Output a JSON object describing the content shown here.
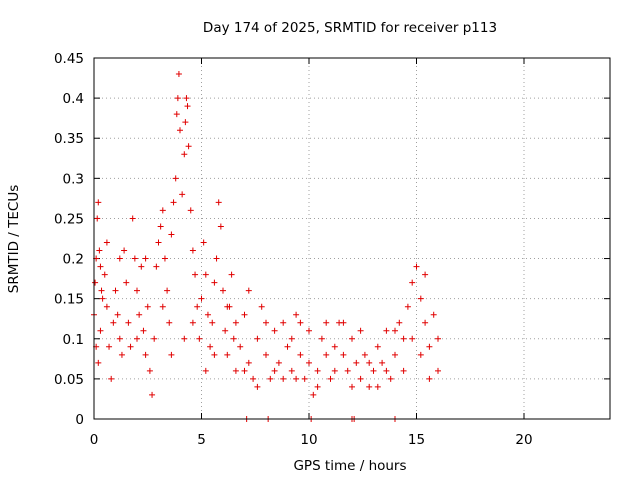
{
  "chart_data": {
    "type": "scatter",
    "title": "Day 174 of 2025, SRMTID for receiver p113",
    "xlabel": "GPS time / hours",
    "ylabel": "SRMTID / TECUs",
    "xlim": [
      0,
      24
    ],
    "ylim": [
      0,
      0.45
    ],
    "xticks": [
      0,
      5,
      10,
      15,
      20
    ],
    "yticks": [
      0,
      0.05,
      0.1,
      0.15,
      0.2,
      0.25,
      0.3,
      0.35,
      0.4,
      0.45
    ],
    "xtick_labels": [
      "0",
      "5",
      "10",
      "15",
      "20"
    ],
    "ytick_labels": [
      "0",
      "0.05",
      "0.1",
      "0.15",
      "0.2",
      "0.25",
      "0.3",
      "0.35",
      "0.4",
      "0.45"
    ],
    "grid": true,
    "marker": "plus",
    "color": "#e00000",
    "series": [
      {
        "name": "SRMTID",
        "points": [
          [
            0.0,
            0.13
          ],
          [
            0.05,
            0.17
          ],
          [
            0.1,
            0.2
          ],
          [
            0.15,
            0.25
          ],
          [
            0.2,
            0.27
          ],
          [
            0.25,
            0.21
          ],
          [
            0.3,
            0.19
          ],
          [
            0.35,
            0.16
          ],
          [
            0.1,
            0.09
          ],
          [
            0.2,
            0.07
          ],
          [
            0.3,
            0.11
          ],
          [
            0.4,
            0.15
          ],
          [
            0.5,
            0.18
          ],
          [
            0.6,
            0.14
          ],
          [
            0.7,
            0.09
          ],
          [
            0.8,
            0.05
          ],
          [
            0.9,
            0.12
          ],
          [
            1.0,
            0.16
          ],
          [
            1.1,
            0.13
          ],
          [
            1.2,
            0.1
          ],
          [
            1.3,
            0.08
          ],
          [
            1.4,
            0.21
          ],
          [
            1.5,
            0.17
          ],
          [
            1.6,
            0.12
          ],
          [
            1.7,
            0.09
          ],
          [
            1.8,
            0.25
          ],
          [
            1.9,
            0.2
          ],
          [
            2.0,
            0.16
          ],
          [
            2.1,
            0.13
          ],
          [
            2.2,
            0.19
          ],
          [
            2.3,
            0.11
          ],
          [
            2.4,
            0.08
          ],
          [
            2.5,
            0.14
          ],
          [
            2.6,
            0.06
          ],
          [
            2.7,
            0.03
          ],
          [
            2.8,
            0.1
          ],
          [
            2.9,
            0.19
          ],
          [
            3.0,
            0.22
          ],
          [
            3.1,
            0.24
          ],
          [
            3.2,
            0.26
          ],
          [
            3.3,
            0.2
          ],
          [
            3.4,
            0.16
          ],
          [
            3.5,
            0.12
          ],
          [
            3.6,
            0.23
          ],
          [
            3.7,
            0.27
          ],
          [
            3.8,
            0.3
          ],
          [
            3.85,
            0.38
          ],
          [
            3.9,
            0.4
          ],
          [
            3.95,
            0.43
          ],
          [
            4.0,
            0.36
          ],
          [
            4.1,
            0.28
          ],
          [
            4.2,
            0.33
          ],
          [
            4.25,
            0.37
          ],
          [
            4.3,
            0.4
          ],
          [
            4.35,
            0.39
          ],
          [
            4.4,
            0.34
          ],
          [
            4.5,
            0.26
          ],
          [
            4.6,
            0.21
          ],
          [
            4.7,
            0.18
          ],
          [
            4.8,
            0.14
          ],
          [
            4.9,
            0.1
          ],
          [
            5.0,
            0.15
          ],
          [
            5.1,
            0.22
          ],
          [
            5.2,
            0.18
          ],
          [
            5.3,
            0.13
          ],
          [
            5.4,
            0.09
          ],
          [
            5.5,
            0.12
          ],
          [
            5.6,
            0.17
          ],
          [
            5.7,
            0.2
          ],
          [
            5.8,
            0.27
          ],
          [
            5.9,
            0.24
          ],
          [
            6.0,
            0.16
          ],
          [
            6.1,
            0.11
          ],
          [
            6.2,
            0.08
          ],
          [
            6.3,
            0.14
          ],
          [
            6.4,
            0.18
          ],
          [
            6.5,
            0.1
          ],
          [
            6.6,
            0.06
          ],
          [
            6.8,
            0.09
          ],
          [
            7.0,
            0.13
          ],
          [
            7.2,
            0.07
          ],
          [
            7.4,
            0.05
          ],
          [
            7.6,
            0.1
          ],
          [
            7.8,
            0.14
          ],
          [
            8.0,
            0.08
          ],
          [
            8.2,
            0.05
          ],
          [
            8.4,
            0.11
          ],
          [
            8.6,
            0.07
          ],
          [
            8.8,
            0.12
          ],
          [
            9.0,
            0.09
          ],
          [
            9.2,
            0.06
          ],
          [
            9.4,
            0.13
          ],
          [
            9.6,
            0.08
          ],
          [
            9.8,
            0.05
          ],
          [
            10.0,
            0.07
          ],
          [
            10.2,
            0.03
          ],
          [
            10.4,
            0.06
          ],
          [
            10.6,
            0.1
          ],
          [
            10.8,
            0.08
          ],
          [
            11.0,
            0.05
          ],
          [
            11.2,
            0.09
          ],
          [
            11.4,
            0.12
          ],
          [
            11.6,
            0.08
          ],
          [
            11.8,
            0.06
          ],
          [
            12.0,
            0.1
          ],
          [
            12.2,
            0.07
          ],
          [
            12.4,
            0.05
          ],
          [
            12.6,
            0.08
          ],
          [
            12.8,
            0.04
          ],
          [
            13.0,
            0.06
          ],
          [
            13.2,
            0.09
          ],
          [
            13.4,
            0.07
          ],
          [
            13.6,
            0.11
          ],
          [
            13.8,
            0.05
          ],
          [
            14.0,
            0.08
          ],
          [
            14.2,
            0.12
          ],
          [
            14.4,
            0.1
          ],
          [
            14.6,
            0.14
          ],
          [
            14.8,
            0.17
          ],
          [
            15.0,
            0.19
          ],
          [
            15.2,
            0.15
          ],
          [
            15.4,
            0.12
          ],
          [
            15.6,
            0.09
          ],
          [
            15.8,
            0.13
          ],
          [
            16.0,
            0.1
          ],
          [
            0.6,
            0.22
          ],
          [
            1.2,
            0.2
          ],
          [
            2.0,
            0.1
          ],
          [
            2.4,
            0.2
          ],
          [
            3.2,
            0.14
          ],
          [
            3.6,
            0.08
          ],
          [
            4.2,
            0.1
          ],
          [
            4.6,
            0.12
          ],
          [
            5.2,
            0.06
          ],
          [
            5.6,
            0.08
          ],
          [
            6.2,
            0.14
          ],
          [
            6.6,
            0.12
          ],
          [
            7.0,
            0.06
          ],
          [
            7.2,
            0.16
          ],
          [
            7.6,
            0.04
          ],
          [
            8.0,
            0.12
          ],
          [
            8.4,
            0.06
          ],
          [
            8.8,
            0.05
          ],
          [
            9.2,
            0.1
          ],
          [
            9.4,
            0.05
          ],
          [
            9.6,
            0.12
          ],
          [
            10.0,
            0.11
          ],
          [
            10.4,
            0.04
          ],
          [
            10.8,
            0.12
          ],
          [
            11.2,
            0.06
          ],
          [
            11.6,
            0.12
          ],
          [
            12.0,
            0.04
          ],
          [
            12.4,
            0.11
          ],
          [
            12.8,
            0.07
          ],
          [
            13.2,
            0.04
          ],
          [
            13.6,
            0.06
          ],
          [
            14.0,
            0.11
          ],
          [
            14.4,
            0.06
          ],
          [
            14.8,
            0.1
          ],
          [
            15.2,
            0.08
          ],
          [
            15.4,
            0.18
          ],
          [
            15.6,
            0.05
          ],
          [
            16.0,
            0.06
          ],
          [
            7.1,
            0.0
          ],
          [
            8.1,
            0.0
          ],
          [
            10.1,
            0.0
          ],
          [
            12.0,
            0.0
          ],
          [
            12.1,
            0.0
          ],
          [
            14.0,
            0.0
          ]
        ]
      }
    ]
  }
}
